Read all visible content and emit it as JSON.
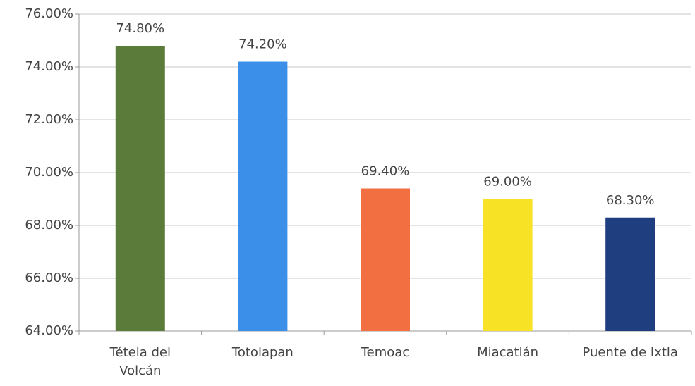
{
  "chart_data": {
    "type": "bar",
    "categories": [
      "Tétela del\nVolcán",
      "Totolapan",
      "Temoac",
      "Miacatlán",
      "Puente de Ixtla"
    ],
    "values": [
      74.8,
      74.2,
      69.4,
      69.0,
      68.3
    ],
    "value_labels": [
      "74.80%",
      "74.20%",
      "69.40%",
      "69.00%",
      "68.30%"
    ],
    "colors": [
      "#5b7b3b",
      "#3b8fe9",
      "#f26f42",
      "#f7e225",
      "#1f3e7f"
    ],
    "ylim": [
      64,
      76
    ],
    "yticks": [
      {
        "value": 64,
        "label": "64.00%"
      },
      {
        "value": 66,
        "label": "66.00%"
      },
      {
        "value": 68,
        "label": "68.00%"
      },
      {
        "value": 70,
        "label": "70.00%"
      },
      {
        "value": 72,
        "label": "72.00%"
      },
      {
        "value": 74,
        "label": "74.00%"
      },
      {
        "value": 76,
        "label": "76.00%"
      }
    ],
    "grid": true
  }
}
